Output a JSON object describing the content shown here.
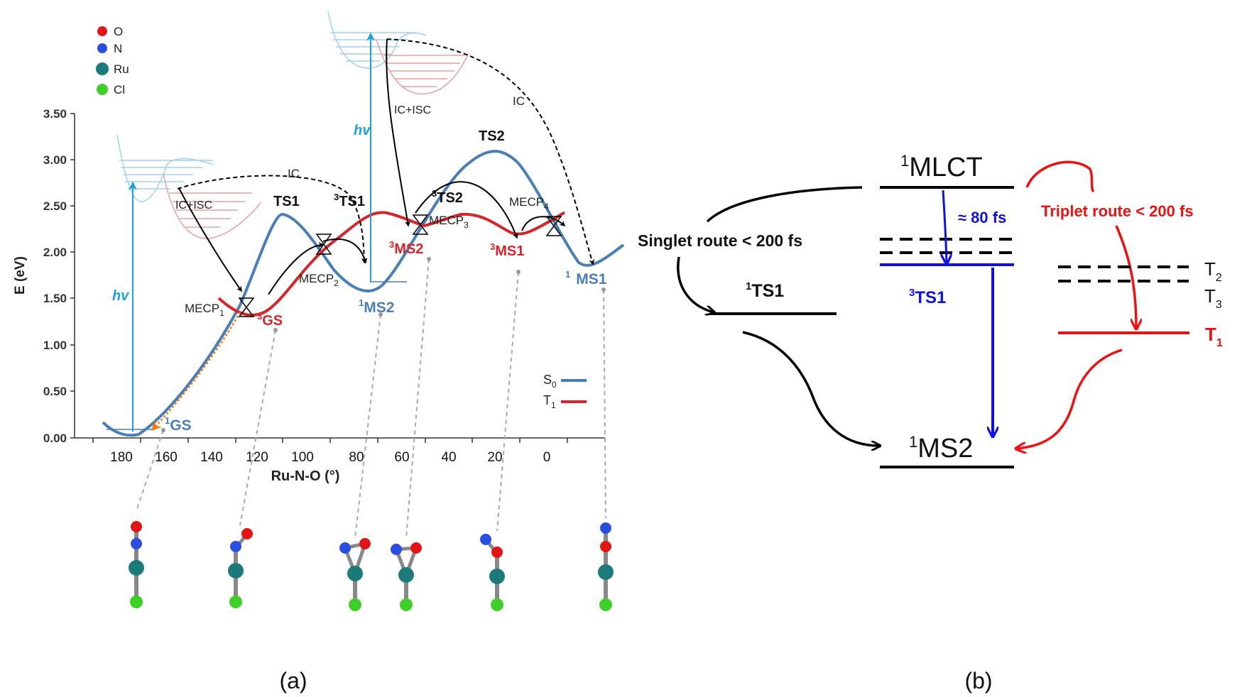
{
  "colors": {
    "s0": "#4a7fb5",
    "t1": "#d4262a",
    "hv": "#1ea0d8",
    "blue": "#1010e0",
    "red": "#ee1111",
    "black": "#000000",
    "orange": "#f07a10",
    "o_atom": "#e01515",
    "n_atom": "#2a4fe0",
    "ru_atom": "#1d7a7a",
    "cl_atom": "#3fce2a"
  },
  "panel_a": {
    "label": "(a)",
    "legend_atoms": [
      {
        "symbol": "O",
        "color_key": "o_atom"
      },
      {
        "symbol": "N",
        "color_key": "n_atom"
      },
      {
        "symbol": "Ru",
        "color_key": "ru_atom"
      },
      {
        "symbol": "Cl",
        "color_key": "cl_atom"
      }
    ],
    "y_axis": {
      "label": "E (eV)",
      "ticks": [
        "3.50",
        "3.00",
        "2.50",
        "2.00",
        "1.50",
        "1.00",
        "0.50",
        "0.00"
      ]
    },
    "x_axis": {
      "label": "Ru-N-O (°)",
      "ticks": [
        "180",
        "160",
        "140",
        "120",
        "100",
        "80",
        "60",
        "40",
        "20",
        "0"
      ]
    },
    "legend_curves": {
      "s0_main": "S",
      "s0_sub": "0",
      "t1_main": "T",
      "t1_sub": "1"
    },
    "labels": {
      "hv": "hv",
      "ic": "IC",
      "ic_isc": "IC+ISC",
      "ts1": "TS1",
      "ts2": "TS2",
      "t_ts1_sup": "3",
      "t_ts1": "TS1",
      "t_ts2_sup": "3",
      "t_ts2": "TS2",
      "mecp": "MECP",
      "mecp1_sub": "1",
      "mecp2_sub": "2",
      "mecp3_sub": "3",
      "mecp4_sub": "4",
      "gs1_sup": "1",
      "gs1": "GS",
      "gs3_sup": "3",
      "gs3": "GS",
      "ms2_1_sup": "1",
      "ms2_1": "MS2",
      "ms2_3_sup": "3",
      "ms2_3": "MS2",
      "ms1_3_sup": "3",
      "ms1_3": "MS1",
      "ms1_1_sup": "1",
      "ms1_1": "MS1"
    }
  },
  "panel_b": {
    "label": "(b)",
    "mlct_sup": "1",
    "mlct": "MLCT",
    "ts1_sup": "1",
    "ts1": "TS1",
    "t_ts1_sup": "3",
    "t_ts1": "TS1",
    "ms2_sup": "1",
    "ms2": "MS2",
    "time_80": "≈ 80 fs",
    "singlet_route": "Singlet route < 200 fs",
    "triplet_route": "Triplet route < 200 fs",
    "t2_main": "T",
    "t2_sub": "2",
    "t3_main": "T",
    "t3_sub": "3",
    "t1_main": "T",
    "t1_sub": "1"
  }
}
